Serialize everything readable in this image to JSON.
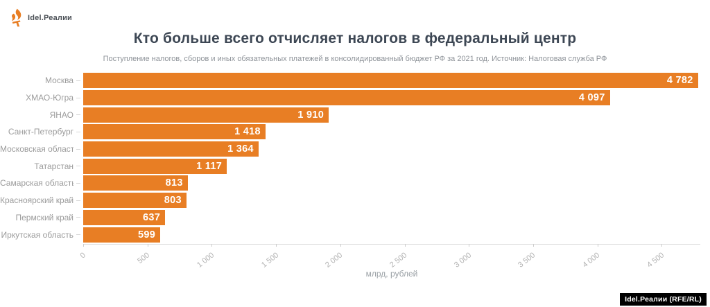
{
  "branding": {
    "logo_text": "Idel.Реалии",
    "badge_text": "Idel.Реалии (RFE/RL)",
    "logo_icon": "rferl-flame-icon",
    "accent_color": "#e87e24"
  },
  "chart_data": {
    "type": "bar",
    "orientation": "horizontal",
    "title": "Кто больше всего отчисляет налогов в федеральный центр",
    "subtitle": "Поступление налогов, сборов и иных обязательных платежей в консолидированный бюджет РФ за 2021 год. Источник: Налоговая служба РФ",
    "categories": [
      "Москва",
      "ХМАО-Югра",
      "ЯНАО",
      "Санкт-Петербург",
      "Московская область",
      "Татарстан",
      "Самарская область",
      "Красноярский край",
      "Пермский край",
      "Иркутская область"
    ],
    "values": [
      4782,
      4097,
      1910,
      1418,
      1364,
      1117,
      813,
      803,
      637,
      599
    ],
    "value_labels": [
      "4 782",
      "4 097",
      "1 910",
      "1 418",
      "1 364",
      "1 117",
      "813",
      "803",
      "637",
      "599"
    ],
    "xlabel": "млрд, рублей",
    "x_ticks": [
      0,
      500,
      1000,
      1500,
      2000,
      2500,
      3000,
      3500,
      4000,
      4500
    ],
    "x_tick_labels": [
      "0",
      "500",
      "1 000",
      "1 500",
      "2 000",
      "2 500",
      "3 000",
      "3 500",
      "4 000",
      "4 500"
    ],
    "xlim": [
      0,
      4800
    ],
    "grid": false,
    "legend": "none",
    "bar_color": "#e87e24",
    "value_label_color": "#ffffff"
  }
}
